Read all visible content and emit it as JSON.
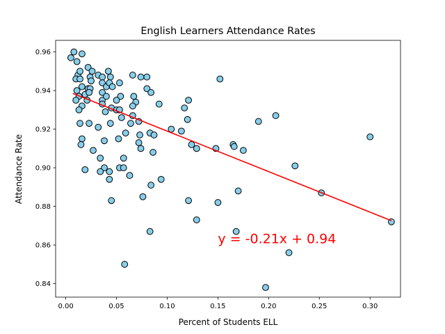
{
  "chart_data": {
    "type": "scatter",
    "title": "English Learners Attendance Rates",
    "xlabel": "Percent of Students ELL",
    "ylabel": "Attendance Rate",
    "xlim": [
      -0.01,
      0.33
    ],
    "ylim": [
      0.833,
      0.966
    ],
    "xticks": [
      0.0,
      0.05,
      0.1,
      0.15,
      0.2,
      0.25,
      0.3
    ],
    "xtick_labels": [
      "0.00",
      "0.05",
      "0.10",
      "0.15",
      "0.20",
      "0.25",
      "0.30"
    ],
    "yticks": [
      0.84,
      0.86,
      0.88,
      0.9,
      0.92,
      0.94,
      0.96
    ],
    "ytick_labels": [
      "0.84",
      "0.86",
      "0.88",
      "0.90",
      "0.92",
      "0.94",
      "0.96"
    ],
    "grid": false,
    "marker_color": "#87ceeb",
    "marker_edge_color": "#000000",
    "regression": {
      "slope": -0.21,
      "intercept": 0.94,
      "x_range": [
        0.007,
        0.321
      ],
      "color": "#ff0000",
      "equation_label": "y = -0.21x + 0.94",
      "label_anchor": [
        0.15,
        0.861
      ]
    },
    "points": [
      {
        "x": 0.005,
        "y": 0.957
      },
      {
        "x": 0.008,
        "y": 0.96
      },
      {
        "x": 0.011,
        "y": 0.955
      },
      {
        "x": 0.016,
        "y": 0.959
      },
      {
        "x": 0.012,
        "y": 0.948
      },
      {
        "x": 0.01,
        "y": 0.946
      },
      {
        "x": 0.014,
        "y": 0.95
      },
      {
        "x": 0.014,
        "y": 0.946
      },
      {
        "x": 0.016,
        "y": 0.942
      },
      {
        "x": 0.011,
        "y": 0.94
      },
      {
        "x": 0.013,
        "y": 0.937
      },
      {
        "x": 0.01,
        "y": 0.935
      },
      {
        "x": 0.019,
        "y": 0.938
      },
      {
        "x": 0.016,
        "y": 0.932
      },
      {
        "x": 0.013,
        "y": 0.93
      },
      {
        "x": 0.022,
        "y": 0.952
      },
      {
        "x": 0.024,
        "y": 0.947
      },
      {
        "x": 0.026,
        "y": 0.95
      },
      {
        "x": 0.025,
        "y": 0.945
      },
      {
        "x": 0.022,
        "y": 0.941
      },
      {
        "x": 0.024,
        "y": 0.941
      },
      {
        "x": 0.021,
        "y": 0.935
      },
      {
        "x": 0.023,
        "y": 0.939
      },
      {
        "x": 0.014,
        "y": 0.923
      },
      {
        "x": 0.023,
        "y": 0.923
      },
      {
        "x": 0.016,
        "y": 0.915
      },
      {
        "x": 0.015,
        "y": 0.912
      },
      {
        "x": 0.027,
        "y": 0.909
      },
      {
        "x": 0.019,
        "y": 0.899
      },
      {
        "x": 0.032,
        "y": 0.948
      },
      {
        "x": 0.036,
        "y": 0.947
      },
      {
        "x": 0.036,
        "y": 0.944
      },
      {
        "x": 0.04,
        "y": 0.942
      },
      {
        "x": 0.036,
        "y": 0.939
      },
      {
        "x": 0.036,
        "y": 0.935
      },
      {
        "x": 0.04,
        "y": 0.937
      },
      {
        "x": 0.036,
        "y": 0.933
      },
      {
        "x": 0.042,
        "y": 0.95
      },
      {
        "x": 0.044,
        "y": 0.947
      },
      {
        "x": 0.043,
        "y": 0.944
      },
      {
        "x": 0.046,
        "y": 0.942
      },
      {
        "x": 0.053,
        "y": 0.944
      },
      {
        "x": 0.054,
        "y": 0.937
      },
      {
        "x": 0.05,
        "y": 0.935
      },
      {
        "x": 0.045,
        "y": 0.931
      },
      {
        "x": 0.039,
        "y": 0.929
      },
      {
        "x": 0.05,
        "y": 0.93
      },
      {
        "x": 0.053,
        "y": 0.93
      },
      {
        "x": 0.055,
        "y": 0.926
      },
      {
        "x": 0.044,
        "y": 0.923
      },
      {
        "x": 0.032,
        "y": 0.921
      },
      {
        "x": 0.038,
        "y": 0.914
      },
      {
        "x": 0.052,
        "y": 0.915
      },
      {
        "x": 0.057,
        "y": 0.905
      },
      {
        "x": 0.034,
        "y": 0.905
      },
      {
        "x": 0.038,
        "y": 0.9
      },
      {
        "x": 0.034,
        "y": 0.898
      },
      {
        "x": 0.043,
        "y": 0.898
      },
      {
        "x": 0.053,
        "y": 0.9
      },
      {
        "x": 0.057,
        "y": 0.9
      },
      {
        "x": 0.043,
        "y": 0.894
      },
      {
        "x": 0.063,
        "y": 0.896
      },
      {
        "x": 0.045,
        "y": 0.883
      },
      {
        "x": 0.058,
        "y": 0.85
      },
      {
        "x": 0.066,
        "y": 0.948
      },
      {
        "x": 0.074,
        "y": 0.947
      },
      {
        "x": 0.08,
        "y": 0.947
      },
      {
        "x": 0.08,
        "y": 0.941
      },
      {
        "x": 0.084,
        "y": 0.939
      },
      {
        "x": 0.067,
        "y": 0.937
      },
      {
        "x": 0.069,
        "y": 0.934
      },
      {
        "x": 0.066,
        "y": 0.932
      },
      {
        "x": 0.092,
        "y": 0.933
      },
      {
        "x": 0.066,
        "y": 0.927
      },
      {
        "x": 0.064,
        "y": 0.923
      },
      {
        "x": 0.072,
        "y": 0.924
      },
      {
        "x": 0.059,
        "y": 0.918
      },
      {
        "x": 0.073,
        "y": 0.917
      },
      {
        "x": 0.083,
        "y": 0.918
      },
      {
        "x": 0.087,
        "y": 0.917
      },
      {
        "x": 0.072,
        "y": 0.913
      },
      {
        "x": 0.074,
        "y": 0.91
      },
      {
        "x": 0.086,
        "y": 0.908
      },
      {
        "x": 0.076,
        "y": 0.885
      },
      {
        "x": 0.084,
        "y": 0.891
      },
      {
        "x": 0.094,
        "y": 0.894
      },
      {
        "x": 0.083,
        "y": 0.867
      },
      {
        "x": 0.117,
        "y": 0.931
      },
      {
        "x": 0.121,
        "y": 0.935
      },
      {
        "x": 0.12,
        "y": 0.925
      },
      {
        "x": 0.104,
        "y": 0.92
      },
      {
        "x": 0.114,
        "y": 0.919
      },
      {
        "x": 0.124,
        "y": 0.912
      },
      {
        "x": 0.129,
        "y": 0.91
      },
      {
        "x": 0.148,
        "y": 0.91
      },
      {
        "x": 0.121,
        "y": 0.883
      },
      {
        "x": 0.129,
        "y": 0.873
      },
      {
        "x": 0.15,
        "y": 0.882
      },
      {
        "x": 0.152,
        "y": 0.946
      },
      {
        "x": 0.165,
        "y": 0.912
      },
      {
        "x": 0.166,
        "y": 0.911
      },
      {
        "x": 0.175,
        "y": 0.909
      },
      {
        "x": 0.17,
        "y": 0.888
      },
      {
        "x": 0.168,
        "y": 0.867
      },
      {
        "x": 0.19,
        "y": 0.924
      },
      {
        "x": 0.207,
        "y": 0.927
      },
      {
        "x": 0.226,
        "y": 0.901
      },
      {
        "x": 0.252,
        "y": 0.887
      },
      {
        "x": 0.22,
        "y": 0.856
      },
      {
        "x": 0.197,
        "y": 0.838
      },
      {
        "x": 0.3,
        "y": 0.916
      },
      {
        "x": 0.321,
        "y": 0.872
      }
    ]
  }
}
